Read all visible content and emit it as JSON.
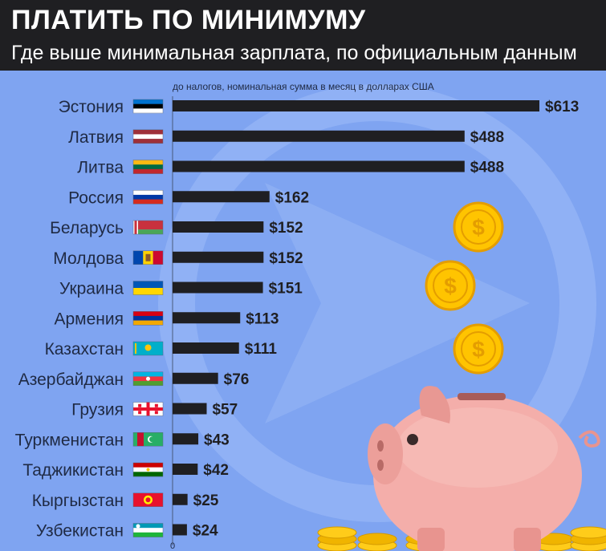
{
  "header": {
    "title": "ПЛАТИТЬ ПО МИНИМУМУ",
    "subtitle": "Где выше минимальная зарплата, по официальным данным"
  },
  "colors": {
    "header_bg": "#1f1f22",
    "plot_bg": "#7fa4f1",
    "bar": "#1f1f22",
    "text": "#1f2a44"
  },
  "illustration": {
    "objects": [
      "piggy-bank",
      "gold-coin",
      "gold-coin",
      "gold-coin",
      "coin-stacks"
    ]
  },
  "chart_data": {
    "type": "bar",
    "orientation": "horizontal",
    "title": "ПЛАТИТЬ ПО МИНИМУМУ",
    "subtitle": "Где выше минимальная зарплата, по официальным данным",
    "note": "до налогов, номинальная сумма в месяц в долларах США",
    "categories": [
      "Эстония",
      "Латвия",
      "Литва",
      "Россия",
      "Беларусь",
      "Молдова",
      "Украина",
      "Армения",
      "Казахстан",
      "Азербайджан",
      "Грузия",
      "Туркменистан",
      "Таджикистан",
      "Кыргызстан",
      "Узбекистан"
    ],
    "values": [
      613,
      488,
      488,
      162,
      152,
      152,
      151,
      113,
      111,
      76,
      57,
      43,
      42,
      25,
      24
    ],
    "labels": [
      "$613",
      "$488",
      "$488",
      "$162",
      "$152",
      "$152",
      "$151",
      "$113",
      "$111",
      "$76",
      "$57",
      "$43",
      "$42",
      "$25",
      "$24"
    ],
    "axis_zero_label": "0",
    "xlim": [
      0,
      613
    ],
    "grid": false,
    "flags": [
      "estonia",
      "latvia",
      "lithuania",
      "russia",
      "belarus",
      "moldova",
      "ukraine",
      "armenia",
      "kazakhstan",
      "azerbaijan",
      "georgia",
      "turkmenistan",
      "tajikistan",
      "kyrgyzstan",
      "uzbekistan"
    ]
  }
}
